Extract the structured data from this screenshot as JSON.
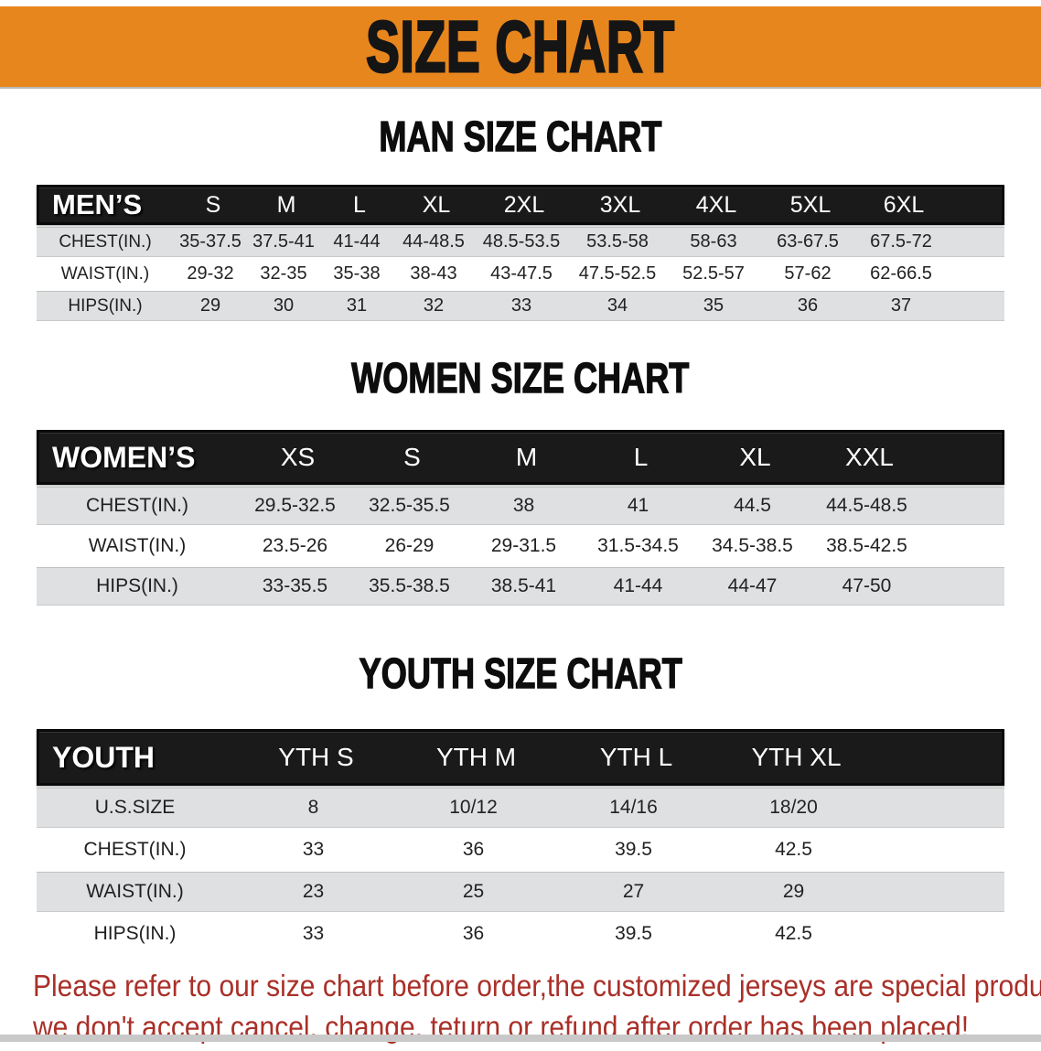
{
  "banner": {
    "title": "SIZE CHART",
    "bg_color": "#E8861E"
  },
  "sections": [
    {
      "title": "MAN SIZE CHART",
      "table": {
        "header_label": "MEN’S",
        "columns": [
          "S",
          "M",
          "L",
          "XL",
          "2XL",
          "3XL",
          "4XL",
          "5XL",
          "6XL"
        ],
        "rows": [
          {
            "label": "CHEST(IN.)",
            "values": [
              "35-37.5",
              "37.5-41",
              "41-44",
              "44-48.5",
              "48.5-53.5",
              "53.5-58",
              "58-63",
              "63-67.5",
              "67.5-72"
            ]
          },
          {
            "label": "WAIST(IN.)",
            "values": [
              "29-32",
              "32-35",
              "35-38",
              "38-43",
              "43-47.5",
              "47.5-52.5",
              "52.5-57",
              "57-62",
              "62-66.5"
            ]
          },
          {
            "label": "HIPS(IN.)",
            "values": [
              "29",
              "30",
              "31",
              "32",
              "33",
              "34",
              "35",
              "36",
              "37"
            ]
          }
        ]
      }
    },
    {
      "title": "WOMEN SIZE CHART",
      "table": {
        "header_label": "WOMEN’S",
        "columns": [
          "XS",
          "S",
          "M",
          "L",
          "XL",
          "XXL"
        ],
        "rows": [
          {
            "label": "CHEST(IN.)",
            "values": [
              "29.5-32.5",
              "32.5-35.5",
              "38",
              "41",
              "44.5",
              "44.5-48.5"
            ]
          },
          {
            "label": "WAIST(IN.)",
            "values": [
              "23.5-26",
              "26-29",
              "29-31.5",
              "31.5-34.5",
              "34.5-38.5",
              "38.5-42.5"
            ]
          },
          {
            "label": "HIPS(IN.)",
            "values": [
              "33-35.5",
              "35.5-38.5",
              "38.5-41",
              "41-44",
              "44-47",
              "47-50"
            ]
          }
        ]
      }
    },
    {
      "title": "YOUTH SIZE CHART",
      "table": {
        "header_label": "YOUTH",
        "columns": [
          "YTH S",
          "YTH M",
          "YTH L",
          "YTH XL"
        ],
        "rows": [
          {
            "label": "U.S.SIZE",
            "values": [
              "8",
              "10/12",
              "14/16",
              "18/20"
            ]
          },
          {
            "label": "CHEST(IN.)",
            "values": [
              "33",
              "36",
              "39.5",
              "42.5"
            ]
          },
          {
            "label": "WAIST(IN.)",
            "values": [
              "23",
              "25",
              "27",
              "29"
            ]
          },
          {
            "label": "HIPS(IN.)",
            "values": [
              "33",
              "36",
              "39.5",
              "42.5"
            ]
          }
        ]
      }
    }
  ],
  "footer": {
    "line1": "Please refer to our size chart before order,the customized jerseys are special products,",
    "line2": "we don't accept cancel, change, teturn or refund after order has been placed!",
    "text_color": "#A93028"
  }
}
